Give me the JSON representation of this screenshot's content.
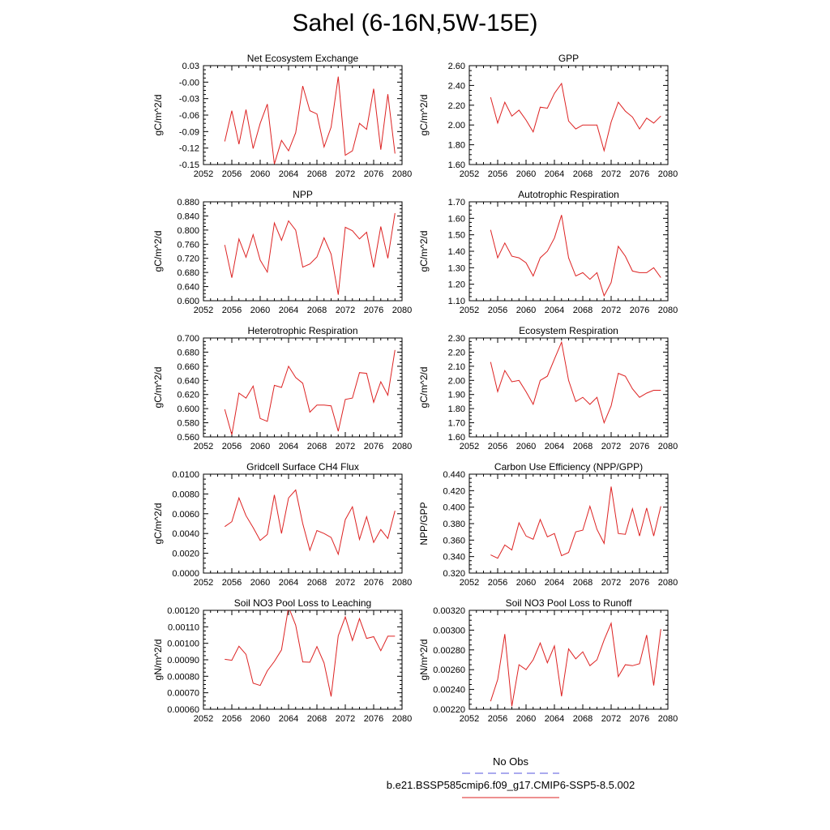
{
  "title": "Sahel (6-16N,5W-15E)",
  "legend": {
    "obs_label": "No Obs",
    "obs_color": "#5555dd",
    "model_label": "b.e21.BSSP585cmip6.f09_g17.CMIP6-SSP5-8.5.002",
    "model_color": "#dd2222"
  },
  "chart_data": [
    {
      "type": "line",
      "title": "Net Ecosystem Exchange",
      "ylabel": "gC/m^2/d",
      "xlim": [
        2052,
        2080
      ],
      "ylim": [
        -0.15,
        0.03
      ],
      "xticks": [
        "2052",
        "2056",
        "2060",
        "2064",
        "2068",
        "2072",
        "2076",
        "2080"
      ],
      "yticks": [
        "-0.15",
        "-0.12",
        "-0.09",
        "-0.06",
        "-0.03",
        "-0.00",
        "0.03"
      ],
      "x": [
        2055,
        2056,
        2057,
        2058,
        2059,
        2060,
        2061,
        2062,
        2063,
        2064,
        2065,
        2066,
        2067,
        2068,
        2069,
        2070,
        2071,
        2072,
        2073,
        2074,
        2075,
        2076,
        2077,
        2078,
        2079
      ],
      "series": [
        {
          "values": [
            -0.108,
            -0.052,
            -0.113,
            -0.05,
            -0.121,
            -0.075,
            -0.04,
            -0.149,
            -0.106,
            -0.125,
            -0.092,
            -0.007,
            -0.052,
            -0.058,
            -0.118,
            -0.082,
            0.01,
            -0.133,
            -0.125,
            -0.075,
            -0.086,
            -0.012,
            -0.123,
            -0.022,
            -0.13
          ]
        }
      ]
    },
    {
      "type": "line",
      "title": "GPP",
      "ylabel": "gC/m^2/d",
      "xlim": [
        2052,
        2080
      ],
      "ylim": [
        1.6,
        2.6
      ],
      "xticks": [
        "2052",
        "2056",
        "2060",
        "2064",
        "2068",
        "2072",
        "2076",
        "2080"
      ],
      "yticks": [
        "1.60",
        "1.80",
        "2.00",
        "2.20",
        "2.40",
        "2.60"
      ],
      "x": [
        2055,
        2056,
        2057,
        2058,
        2059,
        2060,
        2061,
        2062,
        2063,
        2064,
        2065,
        2066,
        2067,
        2068,
        2069,
        2070,
        2071,
        2072,
        2073,
        2074,
        2075,
        2076,
        2077,
        2078,
        2079
      ],
      "series": [
        {
          "values": [
            2.28,
            2.02,
            2.23,
            2.09,
            2.15,
            2.05,
            1.93,
            2.18,
            2.17,
            2.32,
            2.42,
            2.04,
            1.96,
            2.0,
            2.0,
            2.0,
            1.74,
            2.03,
            2.23,
            2.14,
            2.08,
            1.96,
            2.07,
            2.02,
            2.09
          ]
        }
      ]
    },
    {
      "type": "line",
      "title": "NPP",
      "ylabel": "gC/m^2/d",
      "xlim": [
        2052,
        2080
      ],
      "ylim": [
        0.6,
        0.88
      ],
      "xticks": [
        "2052",
        "2056",
        "2060",
        "2064",
        "2068",
        "2072",
        "2076",
        "2080"
      ],
      "yticks": [
        "0.600",
        "0.640",
        "0.680",
        "0.720",
        "0.760",
        "0.800",
        "0.840",
        "0.880"
      ],
      "x": [
        2055,
        2056,
        2057,
        2058,
        2059,
        2060,
        2061,
        2062,
        2063,
        2064,
        2065,
        2066,
        2067,
        2068,
        2069,
        2070,
        2071,
        2072,
        2073,
        2074,
        2075,
        2076,
        2077,
        2078,
        2079
      ],
      "series": [
        {
          "values": [
            0.758,
            0.665,
            0.775,
            0.723,
            0.787,
            0.715,
            0.681,
            0.82,
            0.771,
            0.826,
            0.8,
            0.695,
            0.704,
            0.724,
            0.778,
            0.732,
            0.617,
            0.808,
            0.798,
            0.775,
            0.794,
            0.694,
            0.81,
            0.72,
            0.848
          ]
        }
      ]
    },
    {
      "type": "line",
      "title": "Autotrophic Respiration",
      "ylabel": "gC/m^2/d",
      "xlim": [
        2052,
        2080
      ],
      "ylim": [
        1.1,
        1.7
      ],
      "xticks": [
        "2052",
        "2056",
        "2060",
        "2064",
        "2068",
        "2072",
        "2076",
        "2080"
      ],
      "yticks": [
        "1.10",
        "1.20",
        "1.30",
        "1.40",
        "1.50",
        "1.60",
        "1.70"
      ],
      "x": [
        2055,
        2056,
        2057,
        2058,
        2059,
        2060,
        2061,
        2062,
        2063,
        2064,
        2065,
        2066,
        2067,
        2068,
        2069,
        2070,
        2071,
        2072,
        2073,
        2074,
        2075,
        2076,
        2077,
        2078,
        2079
      ],
      "series": [
        {
          "values": [
            1.53,
            1.36,
            1.45,
            1.37,
            1.36,
            1.33,
            1.25,
            1.36,
            1.4,
            1.48,
            1.62,
            1.36,
            1.25,
            1.27,
            1.23,
            1.27,
            1.13,
            1.21,
            1.43,
            1.37,
            1.28,
            1.27,
            1.27,
            1.3,
            1.24
          ]
        }
      ]
    },
    {
      "type": "line",
      "title": "Heterotrophic Respiration",
      "ylabel": "gC/m^2/d",
      "xlim": [
        2052,
        2080
      ],
      "ylim": [
        0.56,
        0.7
      ],
      "xticks": [
        "2052",
        "2056",
        "2060",
        "2064",
        "2068",
        "2072",
        "2076",
        "2080"
      ],
      "yticks": [
        "0.560",
        "0.580",
        "0.600",
        "0.620",
        "0.640",
        "0.660",
        "0.680",
        "0.700"
      ],
      "x": [
        2055,
        2056,
        2057,
        2058,
        2059,
        2060,
        2061,
        2062,
        2063,
        2064,
        2065,
        2066,
        2067,
        2068,
        2069,
        2070,
        2071,
        2072,
        2073,
        2074,
        2075,
        2076,
        2077,
        2078,
        2079
      ],
      "series": [
        {
          "values": [
            0.599,
            0.563,
            0.622,
            0.615,
            0.632,
            0.586,
            0.582,
            0.633,
            0.63,
            0.66,
            0.644,
            0.636,
            0.595,
            0.605,
            0.605,
            0.604,
            0.568,
            0.613,
            0.615,
            0.651,
            0.65,
            0.609,
            0.638,
            0.619,
            0.683
          ]
        }
      ]
    },
    {
      "type": "line",
      "title": "Ecosystem Respiration",
      "ylabel": "gC/m^2/d",
      "xlim": [
        2052,
        2080
      ],
      "ylim": [
        1.6,
        2.3
      ],
      "xticks": [
        "2052",
        "2056",
        "2060",
        "2064",
        "2068",
        "2072",
        "2076",
        "2080"
      ],
      "yticks": [
        "1.60",
        "1.70",
        "1.80",
        "1.90",
        "2.00",
        "2.10",
        "2.20",
        "2.30"
      ],
      "x": [
        2055,
        2056,
        2057,
        2058,
        2059,
        2060,
        2061,
        2062,
        2063,
        2064,
        2065,
        2066,
        2067,
        2068,
        2069,
        2070,
        2071,
        2072,
        2073,
        2074,
        2075,
        2076,
        2077,
        2078,
        2079
      ],
      "series": [
        {
          "values": [
            2.13,
            1.92,
            2.07,
            1.99,
            2.0,
            1.92,
            1.83,
            2.0,
            2.03,
            2.15,
            2.27,
            2.0,
            1.85,
            1.88,
            1.83,
            1.88,
            1.7,
            1.82,
            2.05,
            2.03,
            1.94,
            1.88,
            1.91,
            1.93,
            1.93
          ]
        }
      ]
    },
    {
      "type": "line",
      "title": "Gridcell Surface CH4 Flux",
      "ylabel": "gC/m^2/d",
      "xlim": [
        2052,
        2080
      ],
      "ylim": [
        0.0,
        0.01
      ],
      "xticks": [
        "2052",
        "2056",
        "2060",
        "2064",
        "2068",
        "2072",
        "2076",
        "2080"
      ],
      "yticks": [
        "0.0000",
        "0.0020",
        "0.0040",
        "0.0060",
        "0.0080",
        "0.0100"
      ],
      "x": [
        2055,
        2056,
        2057,
        2058,
        2059,
        2060,
        2061,
        2062,
        2063,
        2064,
        2065,
        2066,
        2067,
        2068,
        2069,
        2070,
        2071,
        2072,
        2073,
        2074,
        2075,
        2076,
        2077,
        2078,
        2079
      ],
      "series": [
        {
          "values": [
            0.0047,
            0.0052,
            0.0076,
            0.0058,
            0.0046,
            0.0033,
            0.0039,
            0.0079,
            0.004,
            0.0076,
            0.0084,
            0.005,
            0.0023,
            0.0043,
            0.004,
            0.0036,
            0.0019,
            0.0054,
            0.0067,
            0.0034,
            0.0057,
            0.0031,
            0.0044,
            0.0035,
            0.0063
          ]
        }
      ]
    },
    {
      "type": "line",
      "title": "Carbon Use Efficiency (NPP/GPP)",
      "ylabel": "NPP/GPP",
      "xlim": [
        2052,
        2080
      ],
      "ylim": [
        0.32,
        0.44
      ],
      "xticks": [
        "2052",
        "2056",
        "2060",
        "2064",
        "2068",
        "2072",
        "2076",
        "2080"
      ],
      "yticks": [
        "0.320",
        "0.340",
        "0.360",
        "0.380",
        "0.400",
        "0.420",
        "0.440"
      ],
      "x": [
        2055,
        2056,
        2057,
        2058,
        2059,
        2060,
        2061,
        2062,
        2063,
        2064,
        2065,
        2066,
        2067,
        2068,
        2069,
        2070,
        2071,
        2072,
        2073,
        2074,
        2075,
        2076,
        2077,
        2078,
        2079
      ],
      "series": [
        {
          "values": [
            0.342,
            0.338,
            0.354,
            0.348,
            0.381,
            0.365,
            0.361,
            0.385,
            0.364,
            0.368,
            0.341,
            0.345,
            0.37,
            0.372,
            0.401,
            0.373,
            0.356,
            0.425,
            0.368,
            0.367,
            0.398,
            0.365,
            0.399,
            0.365,
            0.401
          ]
        }
      ]
    },
    {
      "type": "line",
      "title": "Soil NO3 Pool Loss to Leaching",
      "ylabel": "gN/m^2/d",
      "xlim": [
        2052,
        2080
      ],
      "ylim": [
        0.0006,
        0.0012
      ],
      "xticks": [
        "2052",
        "2056",
        "2060",
        "2064",
        "2068",
        "2072",
        "2076",
        "2080"
      ],
      "yticks": [
        "0.00060",
        "0.00070",
        "0.00080",
        "0.00090",
        "0.00100",
        "0.00110",
        "0.00120"
      ],
      "x": [
        2055,
        2056,
        2057,
        2058,
        2059,
        2060,
        2061,
        2062,
        2063,
        2064,
        2065,
        2066,
        2067,
        2068,
        2069,
        2070,
        2071,
        2072,
        2073,
        2074,
        2075,
        2076,
        2077,
        2078,
        2079
      ],
      "series": [
        {
          "values": [
            0.000903,
            0.000897,
            0.000982,
            0.000933,
            0.000758,
            0.000744,
            0.000833,
            0.00089,
            0.00096,
            0.00122,
            0.00111,
            0.000887,
            0.000885,
            0.00098,
            0.000881,
            0.000677,
            0.001045,
            0.00116,
            0.001017,
            0.00115,
            0.00103,
            0.00104,
            0.000955,
            0.001043,
            0.001043
          ]
        }
      ]
    },
    {
      "type": "line",
      "title": "Soil NO3 Pool Loss to Runoff",
      "ylabel": "gN/m^2/d",
      "xlim": [
        2052,
        2080
      ],
      "ylim": [
        0.0022,
        0.0032
      ],
      "xticks": [
        "2052",
        "2056",
        "2060",
        "2064",
        "2068",
        "2072",
        "2076",
        "2080"
      ],
      "yticks": [
        "0.00220",
        "0.00240",
        "0.00260",
        "0.00280",
        "0.00300",
        "0.00320"
      ],
      "x": [
        2055,
        2056,
        2057,
        2058,
        2059,
        2060,
        2061,
        2062,
        2063,
        2064,
        2065,
        2066,
        2067,
        2068,
        2069,
        2070,
        2071,
        2072,
        2073,
        2074,
        2075,
        2076,
        2077,
        2078,
        2079
      ],
      "series": [
        {
          "values": [
            0.00228,
            0.0025,
            0.00296,
            0.00223,
            0.00265,
            0.0026,
            0.0027,
            0.00287,
            0.00267,
            0.00284,
            0.00233,
            0.00281,
            0.00271,
            0.00278,
            0.00264,
            0.0027,
            0.0029,
            0.00307,
            0.00253,
            0.00265,
            0.00264,
            0.00266,
            0.00295,
            0.00244,
            0.00301
          ]
        }
      ]
    }
  ]
}
